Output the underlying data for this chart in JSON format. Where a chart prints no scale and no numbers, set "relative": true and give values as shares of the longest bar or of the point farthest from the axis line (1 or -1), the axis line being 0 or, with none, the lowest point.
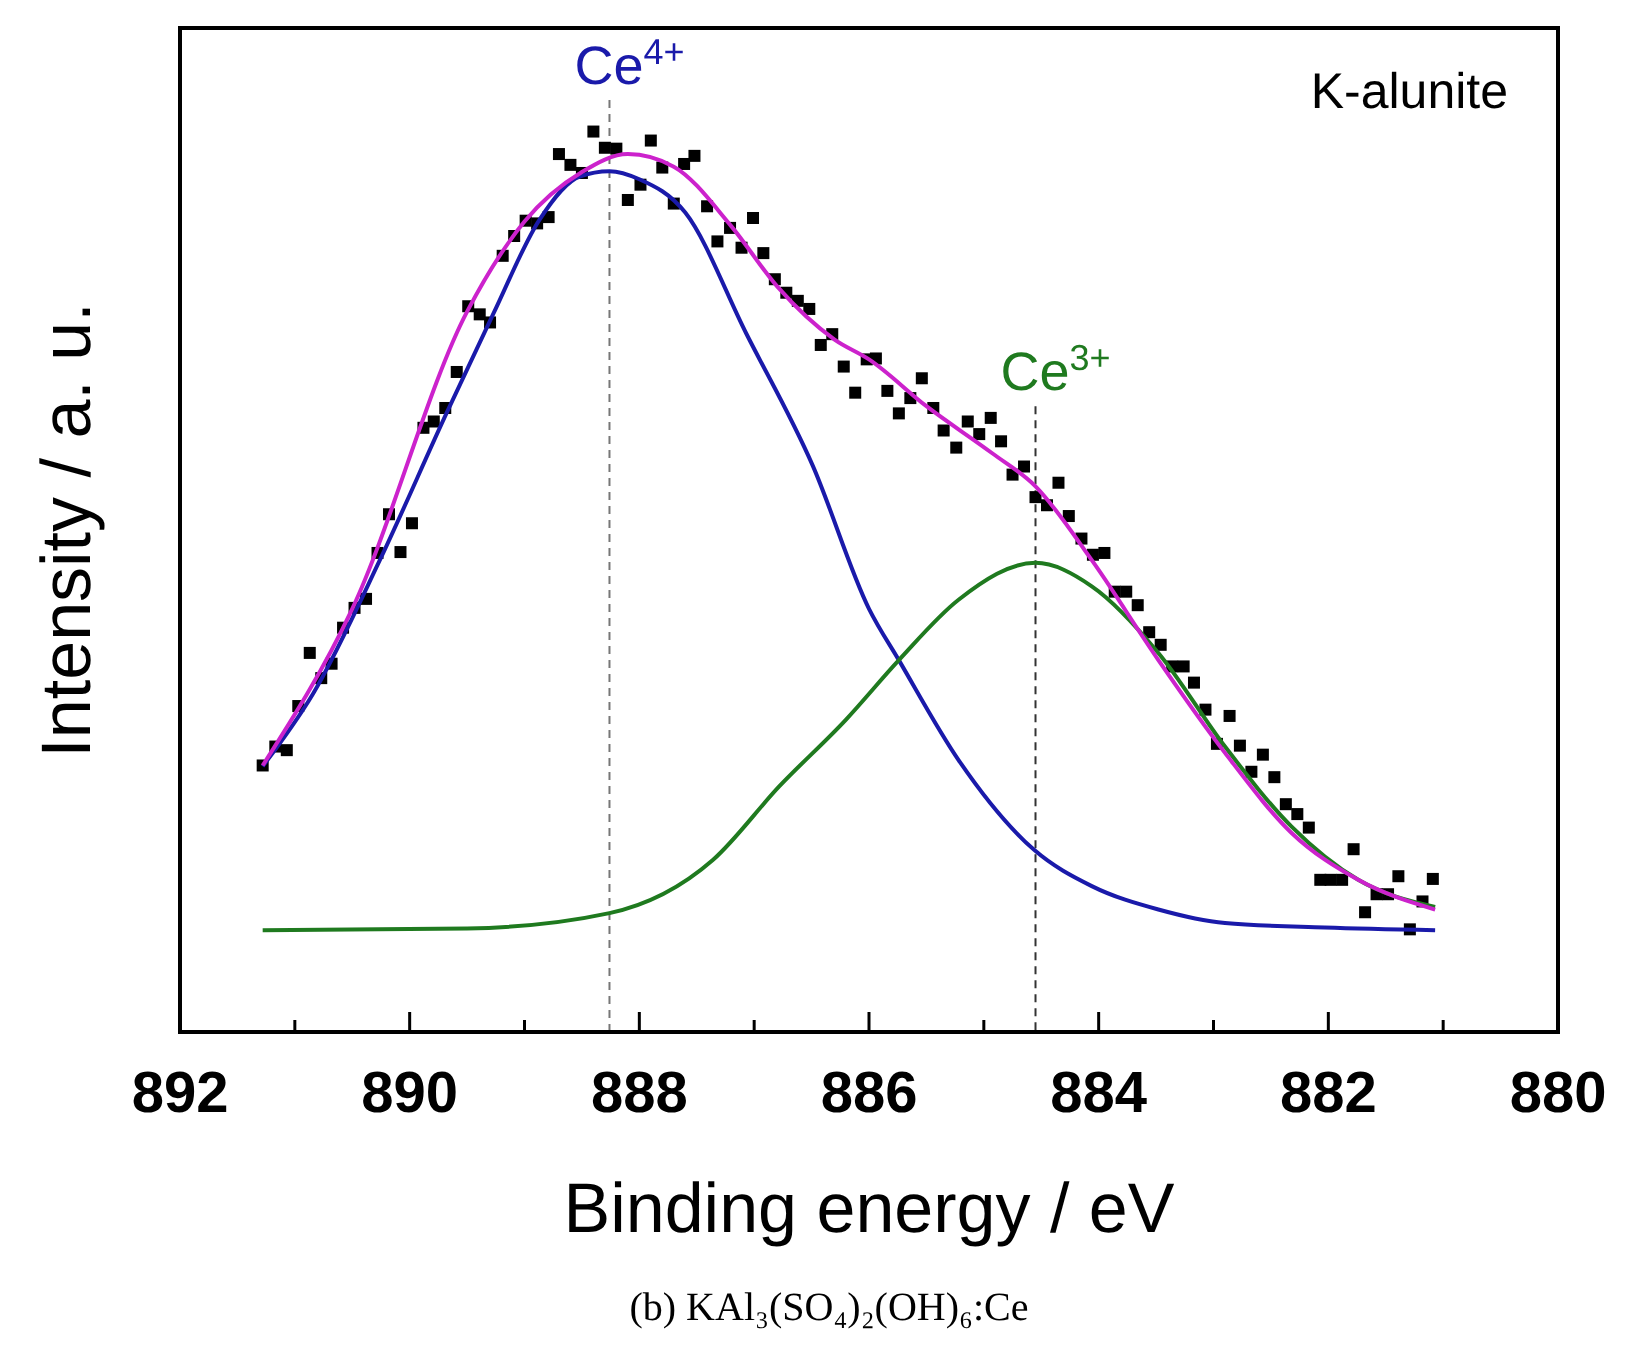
{
  "chart_data": {
    "type": "line",
    "xlabel": "Binding energy / eV",
    "ylabel": "Intensity / a. u.",
    "relative": true,
    "tick_labels": "x",
    "xlim": [
      892,
      880
    ],
    "xticks": [
      892,
      {
        "value": 891,
        "label": null
      },
      890,
      {
        "value": 889,
        "label": null
      },
      888,
      {
        "value": 887,
        "label": null
      },
      886,
      {
        "value": 885,
        "label": null
      },
      884,
      {
        "value": 883,
        "label": null
      },
      882,
      {
        "value": 881,
        "label": null
      },
      880
    ],
    "grid": false,
    "series": [
      {
        "type": "scatter",
        "marker": "square",
        "color": "#000000",
        "x": [
          891.28,
          891.17,
          891.07,
          890.97,
          890.87,
          890.77,
          890.68,
          890.58,
          890.48,
          890.38,
          890.28,
          890.18,
          890.08,
          889.98,
          889.88,
          889.79,
          889.69,
          889.59,
          889.49,
          889.39,
          889.3,
          889.19,
          889.09,
          888.99,
          888.89,
          888.79,
          888.7,
          888.6,
          888.5,
          888.4,
          888.3,
          888.2,
          888.1,
          887.99,
          887.9,
          887.8,
          887.7,
          887.61,
          887.52,
          887.41,
          887.32,
          887.21,
          887.11,
          887.01,
          886.92,
          886.82,
          886.72,
          886.62,
          886.52,
          886.42,
          886.32,
          886.22,
          886.12,
          886.02,
          885.94,
          885.84,
          885.74,
          885.64,
          885.54,
          885.44,
          885.35,
          885.24,
          885.14,
          885.04,
          884.94,
          884.85,
          884.75,
          884.65,
          884.55,
          884.45,
          884.35,
          884.26,
          884.15,
          884.05,
          883.95,
          883.86,
          883.76,
          883.66,
          883.56,
          883.46,
          883.36,
          883.26,
          883.17,
          883.07,
          882.97,
          882.86,
          882.77,
          882.67,
          882.57,
          882.47,
          882.37,
          882.27,
          882.17,
          882.07,
          881.98,
          881.88,
          881.78,
          881.68,
          881.58,
          881.48,
          881.39,
          881.29,
          881.18,
          881.09
        ],
        "values": [
          0.296,
          0.317,
          0.313,
          0.362,
          0.421,
          0.393,
          0.409,
          0.449,
          0.471,
          0.481,
          0.532,
          0.575,
          0.533,
          0.565,
          0.671,
          0.678,
          0.693,
          0.733,
          0.806,
          0.797,
          0.788,
          0.862,
          0.884,
          0.901,
          0.898,
          0.905,
          0.975,
          0.963,
          0.954,
          1.0,
          0.982,
          0.981,
          0.924,
          0.941,
          0.99,
          0.96,
          0.92,
          0.964,
          0.973,
          0.917,
          0.878,
          0.893,
          0.871,
          0.904,
          0.865,
          0.836,
          0.821,
          0.812,
          0.803,
          0.763,
          0.775,
          0.739,
          0.71,
          0.747,
          0.748,
          0.712,
          0.687,
          0.704,
          0.726,
          0.693,
          0.668,
          0.649,
          0.678,
          0.664,
          0.682,
          0.656,
          0.619,
          0.628,
          0.594,
          0.585,
          0.61,
          0.573,
          0.548,
          0.53,
          0.532,
          0.489,
          0.489,
          0.474,
          0.444,
          0.43,
          0.406,
          0.406,
          0.388,
          0.358,
          0.32,
          0.351,
          0.318,
          0.289,
          0.308,
          0.283,
          0.253,
          0.242,
          0.227,
          0.169,
          0.169,
          0.169,
          0.203,
          0.133,
          0.153,
          0.153,
          0.173,
          0.114,
          0.145,
          0.17
        ]
      },
      {
        "color": "#1a1aaa",
        "x": [
          891.28,
          890.84,
          890.26,
          889.68,
          889.27,
          888.87,
          888.52,
          888.26,
          888.0,
          887.6,
          887.07,
          886.49,
          886.0,
          885.74,
          885.22,
          884.56,
          884.06,
          883.48,
          882.9,
          882.03,
          881.07
        ],
        "values": [
          0.295,
          0.376,
          0.524,
          0.687,
          0.798,
          0.902,
          0.95,
          0.956,
          0.947,
          0.91,
          0.776,
          0.629,
          0.47,
          0.413,
          0.302,
          0.202,
          0.162,
          0.136,
          0.121,
          0.116,
          0.113
        ]
      },
      {
        "color": "#1f7a1f",
        "x": [
          891.28,
          889.5,
          888.26,
          887.36,
          886.78,
          886.2,
          885.74,
          885.22,
          884.55,
          884.06,
          883.48,
          882.9,
          882.32,
          881.74,
          881.07
        ],
        "values": [
          0.113,
          0.115,
          0.132,
          0.191,
          0.273,
          0.347,
          0.413,
          0.48,
          0.521,
          0.495,
          0.421,
          0.317,
          0.228,
          0.169,
          0.139
        ]
      },
      {
        "color": "#cc22cc",
        "x": [
          891.28,
          890.5,
          889.5,
          889.0,
          888.5,
          888.1,
          887.7,
          887.2,
          886.8,
          886.3,
          886.0,
          885.5,
          884.93,
          884.55,
          884.06,
          883.48,
          882.9,
          882.32,
          881.74,
          881.07
        ],
        "values": [
          0.296,
          0.47,
          0.8,
          0.9,
          0.955,
          0.975,
          0.961,
          0.895,
          0.828,
          0.769,
          0.747,
          0.695,
          0.643,
          0.606,
          0.524,
          0.413,
          0.31,
          0.221,
          0.169,
          0.136
        ]
      }
    ],
    "ref_lines": [
      {
        "axis": "x",
        "value": 888.26,
        "label": "Ce$^{4+}$",
        "color": "#777777",
        "line_style": "dashed"
      },
      {
        "axis": "x",
        "value": 884.55,
        "label": "Ce$^{3+}$",
        "color": "#333333",
        "line_style": "dashed"
      }
    ],
    "annotations": [
      "K-alunite",
      "(b) KAl₃(SO₄)₂(OH)₆:Ce"
    ]
  }
}
